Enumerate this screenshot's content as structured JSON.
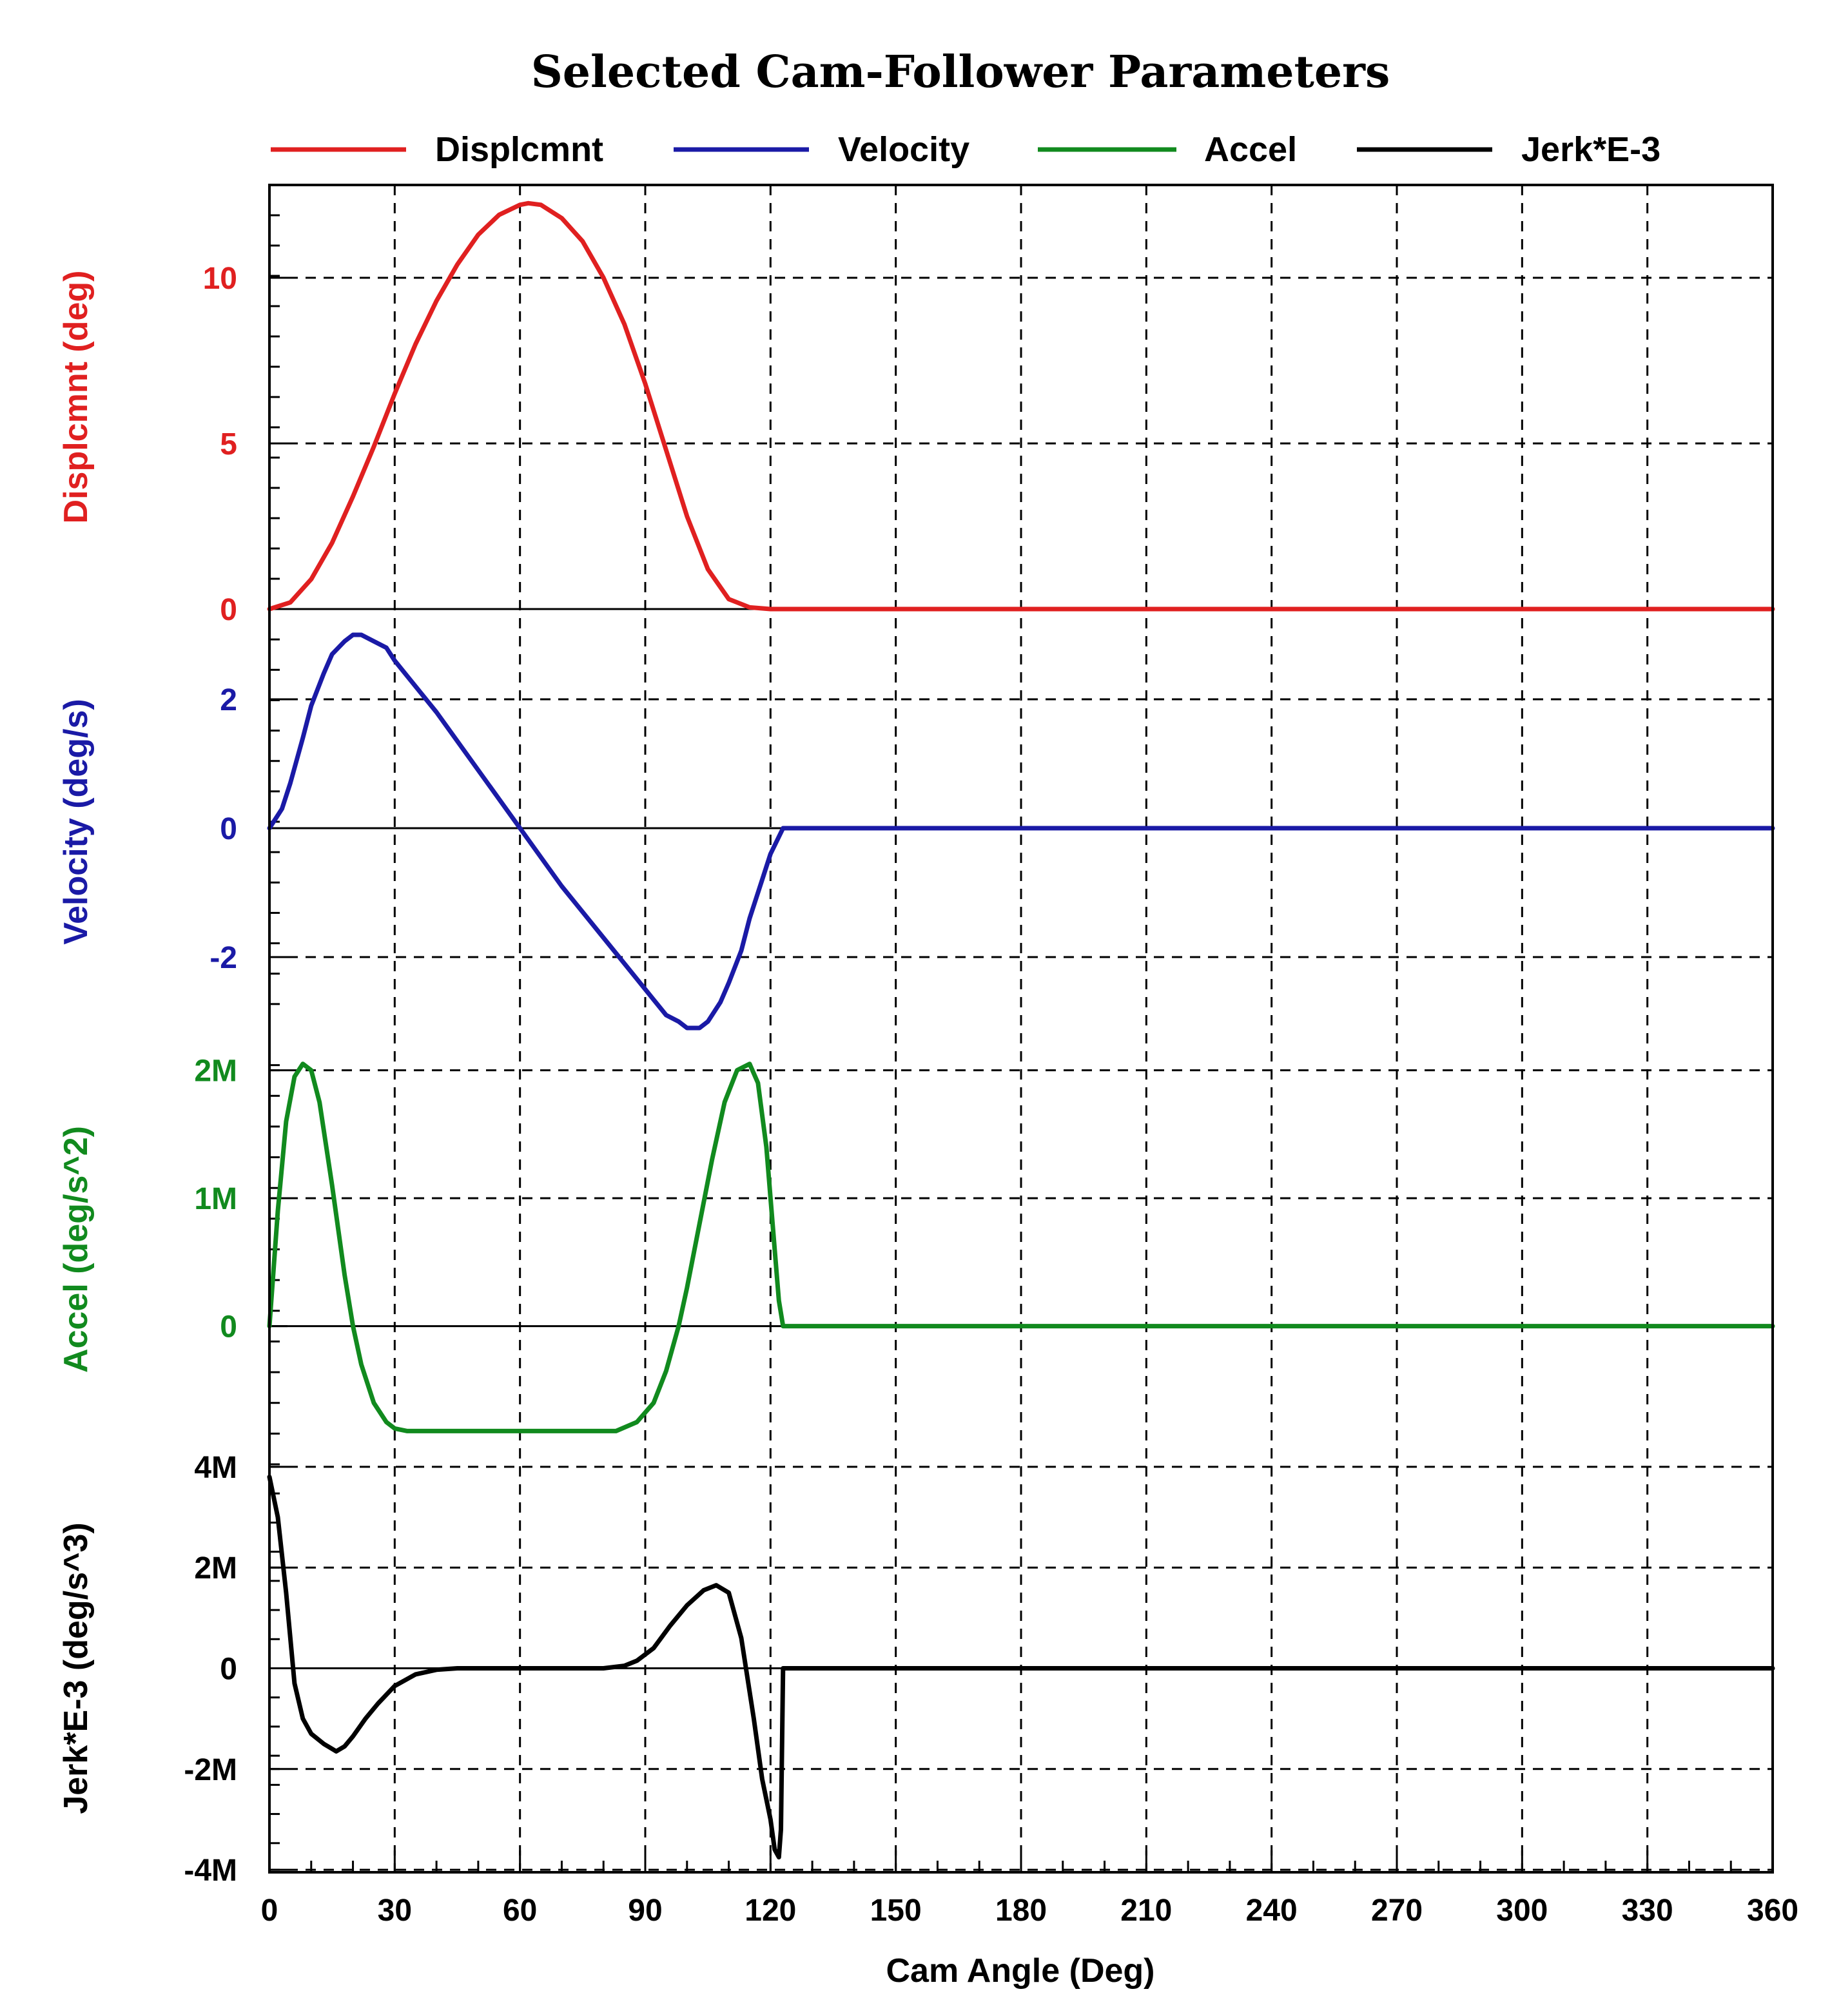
{
  "chart_data": {
    "type": "line",
    "title": "Selected Cam-Follower Parameters",
    "xlabel": "Cam Angle (Deg)",
    "xlim": [
      0,
      360
    ],
    "xticks": [
      0,
      30,
      60,
      90,
      120,
      150,
      180,
      210,
      240,
      270,
      300,
      330,
      360
    ],
    "legend": [
      {
        "name": "Displcmnt",
        "color": "#e02020"
      },
      {
        "name": "Velocity",
        "color": "#1a1aa6"
      },
      {
        "name": "Accel",
        "color": "#118a1e"
      },
      {
        "name": "Jerk*E-3",
        "color": "#000000"
      }
    ],
    "panels": [
      {
        "name": "Displcmnt",
        "ylabel": "Displcmnt  (deg)",
        "color": "#e02020",
        "ylim": [
          0,
          12.8
        ],
        "yticks": [
          {
            "v": 0,
            "label": "0"
          },
          {
            "v": 5,
            "label": "5"
          },
          {
            "v": 10,
            "label": "10"
          }
        ],
        "x": [
          0,
          5,
          10,
          15,
          20,
          25,
          30,
          35,
          40,
          45,
          50,
          55,
          60,
          62,
          65,
          70,
          75,
          80,
          85,
          90,
          95,
          100,
          105,
          110,
          115,
          120,
          123,
          360
        ],
        "y": [
          0,
          0.2,
          0.9,
          2.0,
          3.4,
          4.9,
          6.5,
          8.0,
          9.3,
          10.4,
          11.3,
          11.9,
          12.2,
          12.25,
          12.2,
          11.8,
          11.1,
          10.0,
          8.6,
          6.8,
          4.8,
          2.8,
          1.2,
          0.3,
          0.05,
          0,
          0,
          0
        ]
      },
      {
        "name": "Velocity",
        "ylabel": "Velocity  (deg/s)",
        "color": "#1a1aa6",
        "ylim": [
          -3.2,
          3.4
        ],
        "yticks": [
          {
            "v": -2,
            "label": "-2"
          },
          {
            "v": 0,
            "label": "0"
          },
          {
            "v": 2,
            "label": "2"
          }
        ],
        "x": [
          0,
          3,
          5,
          8,
          10,
          13,
          15,
          18,
          20,
          22,
          25,
          28,
          30,
          40,
          50,
          60,
          70,
          80,
          90,
          95,
          98,
          100,
          103,
          105,
          108,
          110,
          113,
          115,
          118,
          120,
          123,
          360
        ],
        "y": [
          0,
          0.3,
          0.7,
          1.4,
          1.9,
          2.4,
          2.7,
          2.9,
          3.0,
          3.0,
          2.9,
          2.8,
          2.6,
          1.8,
          0.9,
          0.0,
          -0.9,
          -1.7,
          -2.5,
          -2.9,
          -3.0,
          -3.1,
          -3.1,
          -3.0,
          -2.7,
          -2.4,
          -1.9,
          -1.4,
          -0.8,
          -0.4,
          0,
          0
        ]
      },
      {
        "name": "Accel",
        "ylabel": "Accel  (deg/s^2)",
        "color": "#118a1e",
        "ylim": [
          -1.08,
          2.28
        ],
        "yticks": [
          {
            "v": 0,
            "label": "0"
          },
          {
            "v": 1,
            "label": "1M"
          },
          {
            "v": 2,
            "label": "2M"
          }
        ],
        "x": [
          0,
          2,
          4,
          6,
          8,
          10,
          12,
          15,
          18,
          20,
          22,
          25,
          28,
          30,
          33,
          36,
          40,
          45,
          60,
          75,
          83,
          88,
          92,
          95,
          98,
          100,
          103,
          106,
          109,
          112,
          115,
          117,
          119,
          121,
          122,
          123,
          360
        ],
        "y": [
          0,
          0.9,
          1.6,
          1.95,
          2.05,
          2.0,
          1.75,
          1.1,
          0.4,
          0.0,
          -0.3,
          -0.6,
          -0.75,
          -0.8,
          -0.82,
          -0.82,
          -0.82,
          -0.82,
          -0.82,
          -0.82,
          -0.82,
          -0.75,
          -0.6,
          -0.35,
          0.0,
          0.3,
          0.8,
          1.3,
          1.75,
          2.0,
          2.05,
          1.9,
          1.4,
          0.6,
          0.2,
          0,
          0
        ]
      },
      {
        "name": "Jerk*E-3",
        "ylabel": "Jerk*E-3  (deg/s^3)",
        "color": "#000000",
        "ylim": [
          -4.05,
          4.05
        ],
        "yticks": [
          {
            "v": -4,
            "label": "-4M"
          },
          {
            "v": -2,
            "label": "-2M"
          },
          {
            "v": 0,
            "label": "0"
          },
          {
            "v": 2,
            "label": "2M"
          },
          {
            "v": 4,
            "label": "4M"
          }
        ],
        "x": [
          0,
          2,
          4,
          6,
          8,
          10,
          13,
          16,
          18,
          20,
          23,
          26,
          30,
          35,
          40,
          45,
          80,
          85,
          88,
          92,
          96,
          100,
          104,
          107,
          110,
          113,
          116,
          118,
          120,
          121,
          122,
          122.5,
          123,
          360
        ],
        "y": [
          3.8,
          3.0,
          1.5,
          -0.3,
          -1.0,
          -1.3,
          -1.5,
          -1.65,
          -1.55,
          -1.35,
          -1.0,
          -0.7,
          -0.35,
          -0.12,
          -0.03,
          0,
          0,
          0.05,
          0.15,
          0.4,
          0.85,
          1.25,
          1.55,
          1.65,
          1.5,
          0.6,
          -1.0,
          -2.2,
          -3.0,
          -3.6,
          -3.75,
          -3.2,
          0,
          0
        ]
      }
    ]
  }
}
